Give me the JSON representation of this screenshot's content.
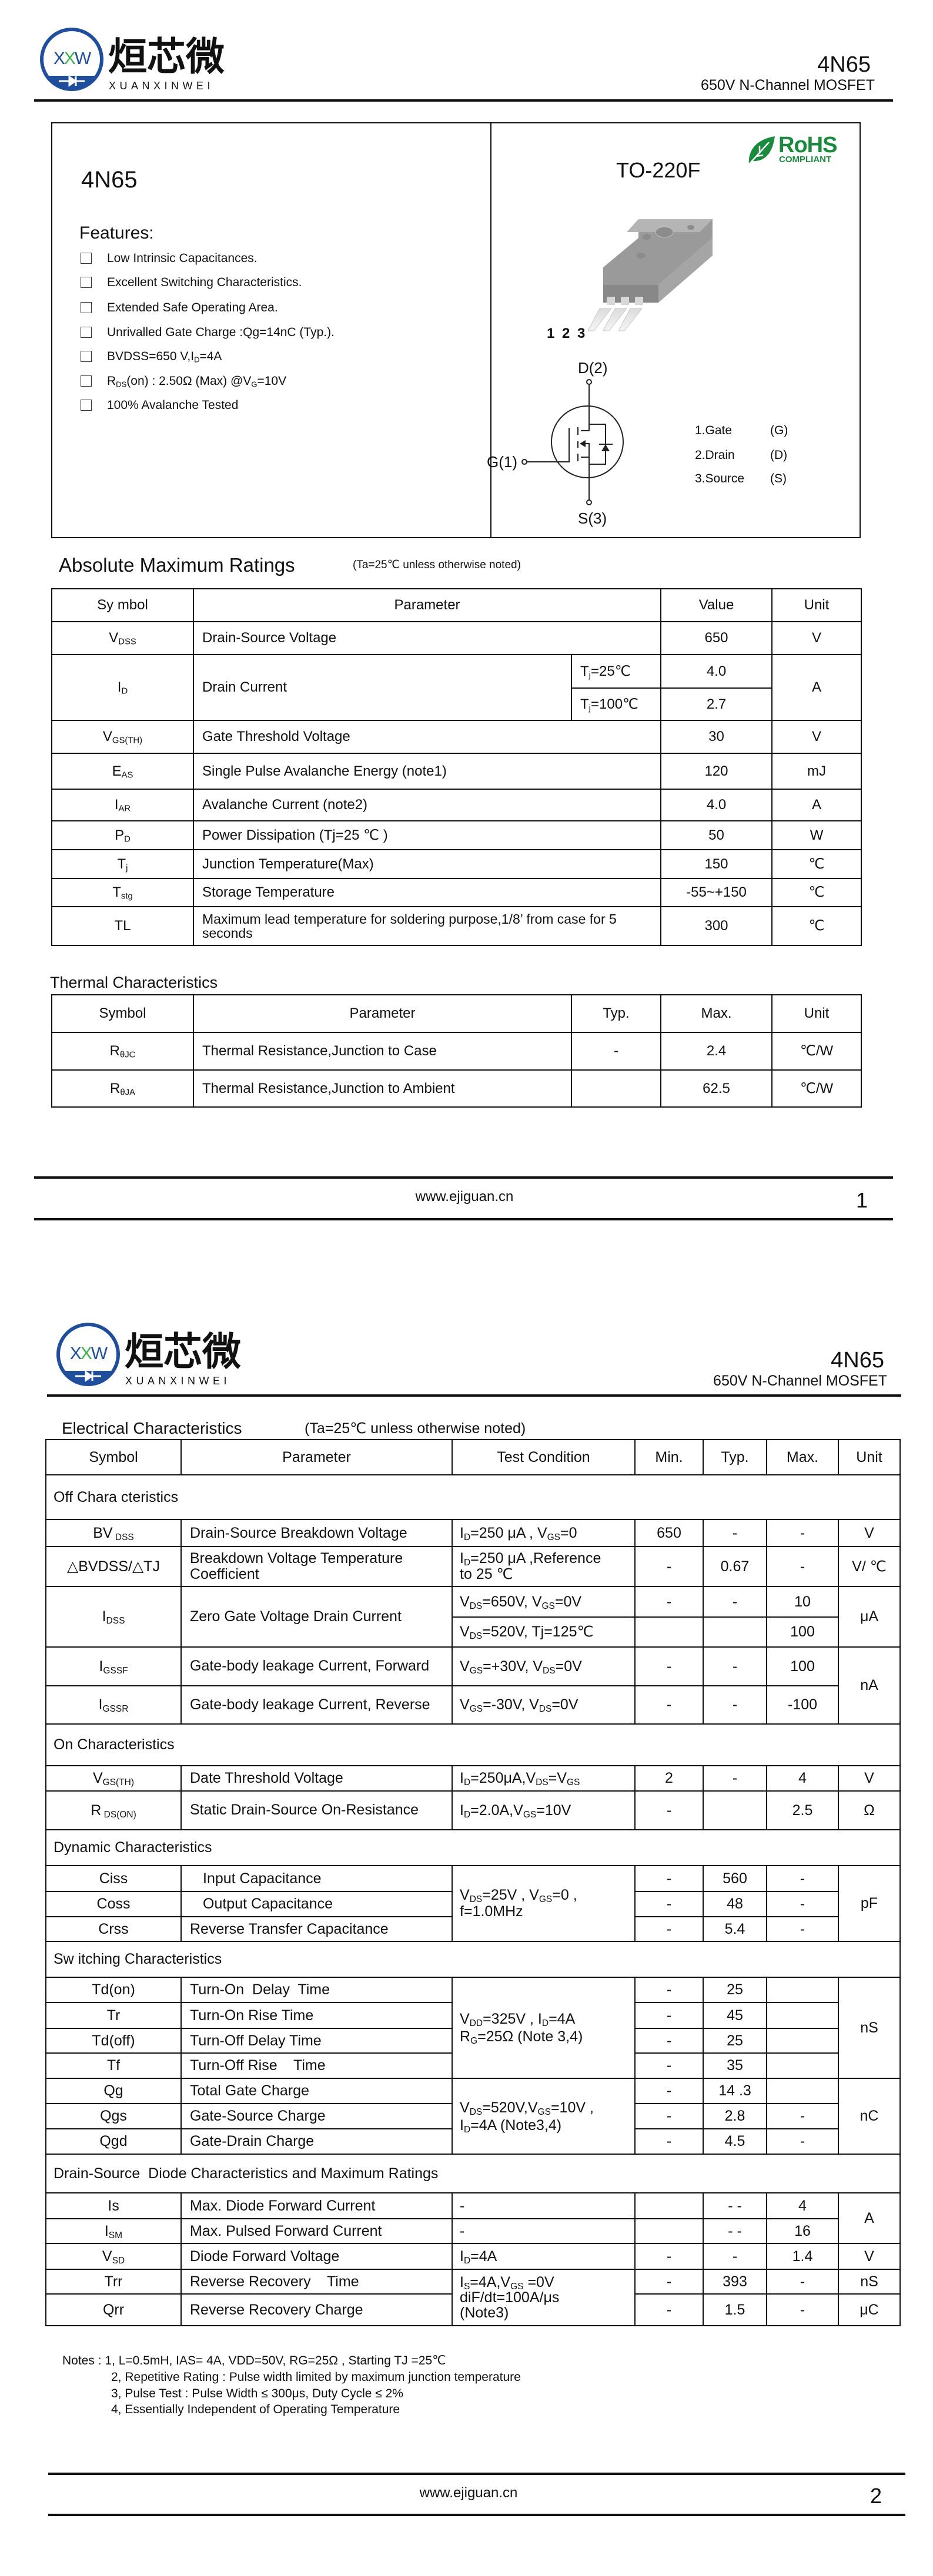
{
  "brand": {
    "name_cn": "烜芯微",
    "name_en": "XUANXINWEI",
    "logo_letters": "XXW",
    "blue": "#1f4e9c",
    "green": "#3cb34a"
  },
  "header": {
    "part": "4N65",
    "subtitle": "650V N-Channel MOSFET"
  },
  "overview": {
    "part": "4N65",
    "features_title": "Features:",
    "features": [
      "Low Intrinsic Capacitances.",
      "Excellent Switching Characteristics.",
      "Extended Safe Operating Area.",
      "Unrivalled Gate Charge :Qg=14nC (Typ.).",
      "BVDSS=650 V,I{D}=4A",
      "R{DS}(on) : 2.50Ω (Max) @V{G}=10V",
      "100% Avalanche Tested"
    ],
    "package": "TO-220F",
    "rohs": {
      "title": "RoHS",
      "subtitle": "COMPLIANT",
      "color": "#1a8a3c"
    },
    "pin_numbers": "1 2 3",
    "symbol_labels": {
      "drain": "D(2)",
      "gate": "G(1)",
      "source": "S(3)"
    },
    "pins": [
      {
        "name": "1.Gate",
        "abbr": "(G)"
      },
      {
        "name": "2.Drain",
        "abbr": "(D)"
      },
      {
        "name": "3.Source",
        "abbr": "(S)"
      }
    ]
  },
  "abs_max": {
    "title": "Absolute Maximum Ratings",
    "note": "(Ta=25℃ unless otherwise noted)",
    "headers": [
      "Sy mbol",
      "Parameter",
      "Value",
      "Unit"
    ],
    "rows": [
      {
        "symbol": "V{DSS}",
        "parameter": "Drain-Source Voltage",
        "value": "650",
        "unit": "V"
      },
      {
        "symbol": "I{D}",
        "parameter": "Drain Current",
        "conditions": [
          "T{j}=25℃",
          "T{j}=100℃"
        ],
        "values": [
          "4.0",
          "2.7"
        ],
        "unit": "A"
      },
      {
        "symbol": "V{GS(TH)}",
        "parameter": "Gate Threshold Voltage",
        "value": "30",
        "unit": "V"
      },
      {
        "symbol": "E{AS}",
        "parameter": "Single Pulse Avalanche Energy (note1)",
        "value": "120",
        "unit": "mJ"
      },
      {
        "symbol": "I{AR}",
        "parameter": "Avalanche Current (note2)",
        "value": "4.0",
        "unit": "A"
      },
      {
        "symbol": "P{D}",
        "parameter": "Power Dissipation (Tj=25 ℃ )",
        "value": "50",
        "unit": "W"
      },
      {
        "symbol": "T{j}",
        "parameter": "Junction Temperature(Max)",
        "value": "150",
        "unit": "℃"
      },
      {
        "symbol": "T{stg}",
        "parameter": "Storage Temperature",
        "value": "-55~+150",
        "unit": "℃"
      },
      {
        "symbol": "TL",
        "parameter": "Maximum lead temperature for soldering purpose,1/8’ from case for 5 seconds",
        "value": "300",
        "unit": "℃"
      }
    ]
  },
  "thermal": {
    "title": "Thermal Characteristics",
    "headers": [
      "Symbol",
      "Parameter",
      "Typ.",
      "Max.",
      "Unit"
    ],
    "rows": [
      {
        "symbol": "R{θJC}",
        "parameter": "Thermal Resistance,Junction to Case",
        "typ": "-",
        "max": "2.4",
        "unit": "℃/W"
      },
      {
        "symbol": "R{θJA}",
        "parameter": "Thermal Resistance,Junction to Ambient",
        "typ": "",
        "max": "62.5",
        "unit": "℃/W"
      }
    ]
  },
  "electrical": {
    "title": "Electrical Characteristics",
    "note": "(Ta=25℃ unless otherwise noted)",
    "headers": [
      "Symbol",
      "Parameter",
      "Test Condition",
      "Min.",
      "Typ.",
      "Max.",
      "Unit"
    ],
    "off": {
      "title": "Off Chara cteristics",
      "bvdss": {
        "symbol": "BV{ DSS}",
        "parameter": "Drain-Source Breakdown Voltage",
        "condition": "I{D}=250 μA , V{GS}=0",
        "min": "650",
        "typ": "-",
        "max": "-",
        "unit": "V"
      },
      "dbvdss": {
        "symbol": "△BVDSS/△TJ",
        "parameter": "Breakdown Voltage Temperature Coefficient",
        "condition": "I{D}=250 μA ,Reference\n to 25 ℃",
        "min": "-",
        "typ": "0.67",
        "max": "-",
        "unit": "V/ ℃"
      },
      "idss": {
        "symbol": "I{DSS}",
        "parameter": "Zero Gate Voltage Drain Current",
        "conditions": [
          "V{DS}=650V, V{GS}=0V",
          "V{DS}=520V, Tj=125℃"
        ],
        "min": [
          "-",
          ""
        ],
        "typ": [
          "-",
          ""
        ],
        "max": [
          "10",
          "100"
        ],
        "unit": "μA"
      },
      "igssf": {
        "symbol": "I{GSSF}",
        "parameter": "Gate-body leakage Current, Forward",
        "condition": "V{GS}=+30V, V{DS}=0V",
        "min": "-",
        "typ": "-",
        "max": "100"
      },
      "igssr": {
        "symbol": "I{GSSR}",
        "parameter": "Gate-body leakage Current, Reverse",
        "condition": "V{GS}=-30V, V{DS}=0V",
        "min": "-",
        "typ": "-",
        "max": "-100"
      },
      "igss_unit": "nA"
    },
    "on": {
      "title": "On Characteristics",
      "vgsth": {
        "symbol": "V{GS(TH)}",
        "parameter": "Date Threshold Voltage",
        "condition": "I{D}=250μA,V{DS}=V{GS}",
        "min": "2",
        "typ": "-",
        "max": "4",
        "unit": "V"
      },
      "rdson": {
        "symbol": "R{ DS(ON)}",
        "parameter": "Static Drain-Source On-Resistance",
        "condition": "I{D}=2.0A,V{GS}=10V",
        "min": "-",
        "typ": "",
        "max": "2.5",
        "unit": "Ω"
      }
    },
    "dynamic": {
      "title": "Dynamic Characteristics",
      "condition": "V{DS}=25V , V{GS}=0 ,\nf=1.0MHz",
      "unit": "pF",
      "rows": [
        {
          "symbol": "Ciss",
          "parameter": "Input Capacitance",
          "min": "-",
          "typ": "560",
          "max": "-"
        },
        {
          "symbol": "Coss",
          "parameter": "Output Capacitance",
          "min": "-",
          "typ": "48",
          "max": "-"
        },
        {
          "symbol": "Crss",
          "parameter": "Reverse Transfer Capacitance",
          "min": "-",
          "typ": "5.4",
          "max": "-"
        }
      ]
    },
    "switching": {
      "title": "Sw itching Characteristics",
      "time_condition": "V{DD}=325V , I{D}=4A\nR{G}=25Ω (Note 3,4)",
      "time_unit": "nS",
      "time_rows": [
        {
          "symbol": "Td(on)",
          "parameter": "Turn-On  Delay  Time",
          "min": "-",
          "typ": "25",
          "max": ""
        },
        {
          "symbol": "Tr",
          "parameter": "Turn-On Rise Time",
          "min": "-",
          "typ": "45",
          "max": ""
        },
        {
          "symbol": "Td(off)",
          "parameter": "Turn-Off Delay Time",
          "min": "-",
          "typ": "25",
          "max": ""
        },
        {
          "symbol": "Tf",
          "parameter": "Turn-Off Rise    Time",
          "min": "-",
          "typ": "35",
          "max": ""
        }
      ],
      "charge_condition": "V{DS}=520V,V{GS}=10V ,\nI{D}=4A (Note3,4)",
      "charge_unit": "nC",
      "charge_rows": [
        {
          "symbol": "Qg",
          "parameter": "Total Gate Charge",
          "min": "-",
          "typ": "14 .3",
          "max": ""
        },
        {
          "symbol": "Qgs",
          "parameter": "Gate-Source Charge",
          "min": "-",
          "typ": "2.8",
          "max": "-"
        },
        {
          "symbol": "Qgd",
          "parameter": "Gate-Drain Charge",
          "min": "-",
          "typ": "4.5",
          "max": "-"
        }
      ]
    },
    "diode": {
      "title": "Drain-Source  Diode Characteristics and Maximum Ratings",
      "is": {
        "symbol": "Is",
        "parameter": "Max. Diode Forward Current",
        "condition": "-",
        "min": "",
        "typ": "- -",
        "max": "4"
      },
      "ism": {
        "symbol": "I{SM}",
        "parameter": "Max. Pulsed Forward Current",
        "condition": "-",
        "min": "",
        "typ": "- -",
        "max": "16"
      },
      "current_unit": "A",
      "vsd": {
        "symbol": "V{SD}",
        "parameter": "Diode Forward Voltage",
        "condition": "I{D}=4A",
        "min": "-",
        "typ": "-",
        "max": "1.4",
        "unit": "V"
      },
      "recovery_condition": "I{S}=4A,V{GS} =0V\ndiF/dt=100A/μs\n(Note3)",
      "trr": {
        "symbol": "Trr",
        "parameter": "Reverse Recovery    Time",
        "min": "-",
        "typ": "393",
        "max": "-",
        "unit": "nS"
      },
      "qrr": {
        "symbol": "Qrr",
        "parameter": "Reverse Recovery Charge",
        "min": "-",
        "typ": "1.5",
        "max": "-",
        "unit": "μC"
      }
    }
  },
  "notes": [
    "Notes : 1, L=0.5mH, IAS= 4A, VDD=50V, RG=25Ω , Starting TJ =25℃",
    "2, Repetitive Rating : Pulse width limited by maximum junction temperature",
    "3, Pulse Test : Pulse Width ≤ 300μs, Duty Cycle ≤ 2%",
    "4, Essentially Independent of Operating Temperature"
  ],
  "footer": {
    "website": "www.ejiguan.cn",
    "pages": [
      "1",
      "2"
    ]
  }
}
